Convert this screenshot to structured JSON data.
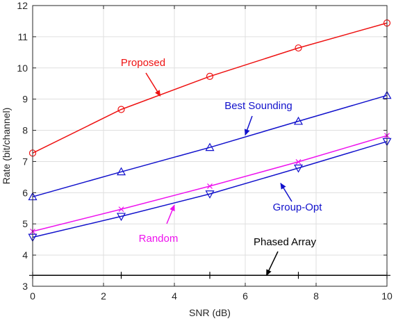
{
  "chart_data": {
    "type": "line",
    "xlabel": "SNR (dB)",
    "ylabel": "Rate (bit/channel)",
    "xlim": [
      0,
      10
    ],
    "ylim": [
      3,
      12
    ],
    "xticks": [
      0,
      2,
      4,
      6,
      8,
      10
    ],
    "yticks": [
      3,
      4,
      5,
      6,
      7,
      8,
      9,
      10,
      11,
      12
    ],
    "grid": true,
    "series": [
      {
        "name": "Proposed",
        "color": "#ee1111",
        "marker": "circle",
        "x": [
          0,
          2.5,
          5,
          7.5,
          10
        ],
        "values": [
          7.27,
          8.67,
          9.73,
          10.64,
          11.44
        ]
      },
      {
        "name": "Best Sounding",
        "color": "#1111cc",
        "marker": "triangle-up",
        "x": [
          0,
          2.5,
          5,
          7.5,
          10
        ],
        "values": [
          5.87,
          6.67,
          7.45,
          8.29,
          9.12
        ]
      },
      {
        "name": "Random",
        "color": "#ee11ee",
        "marker": "x",
        "x": [
          0,
          2.5,
          5,
          7.5,
          10
        ],
        "values": [
          4.76,
          5.47,
          6.21,
          6.99,
          7.83
        ]
      },
      {
        "name": "Group-Opt",
        "color": "#1111cc",
        "marker": "triangle-down",
        "x": [
          0,
          2.5,
          5,
          7.5,
          10
        ],
        "values": [
          4.57,
          5.24,
          5.96,
          6.79,
          7.64
        ]
      },
      {
        "name": "Phased Array",
        "color": "#000000",
        "marker": "plus",
        "x": [
          0,
          2.5,
          5,
          7.5,
          10
        ],
        "values": [
          3.35,
          3.35,
          3.35,
          3.35,
          3.35
        ]
      }
    ],
    "annotations": [
      {
        "text": "Proposed",
        "color": "#ee1111",
        "target": [
          3.6,
          9.1
        ]
      },
      {
        "text": "Best Sounding",
        "color": "#1111cc",
        "target": [
          6.0,
          7.85
        ]
      },
      {
        "text": "Group-Opt",
        "color": "#1111cc",
        "target": [
          7.0,
          6.3
        ]
      },
      {
        "text": "Random",
        "color": "#ee11ee",
        "target": [
          4.0,
          5.6
        ]
      },
      {
        "text": "Phased Array",
        "color": "#000000",
        "target": [
          6.6,
          3.35
        ]
      }
    ]
  }
}
